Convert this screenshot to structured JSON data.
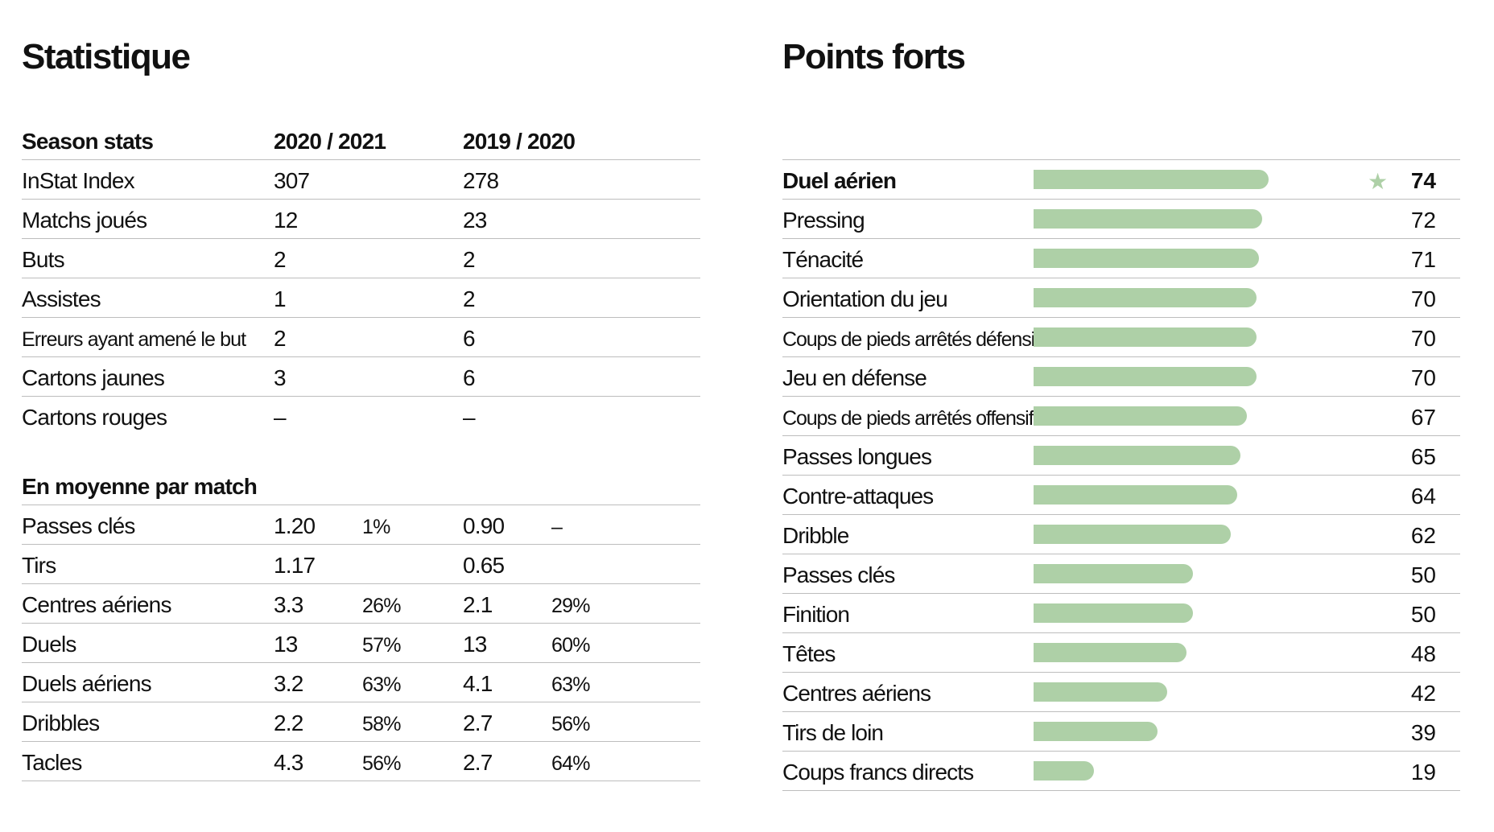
{
  "titles": {
    "left": "Statistique",
    "right": "Points forts"
  },
  "season": {
    "header": {
      "label": "Season stats",
      "col1": "2020 / 2021",
      "col2": "2019 / 2020"
    },
    "rows": [
      {
        "label": "InStat Index",
        "v1": "307",
        "v2": "278"
      },
      {
        "label": "Matchs joués",
        "v1": "12",
        "v2": "23"
      },
      {
        "label": "Buts",
        "v1": "2",
        "v2": "2"
      },
      {
        "label": "Assistes",
        "v1": "1",
        "v2": "2"
      },
      {
        "label": "Erreurs ayant amené le but",
        "v1": "2",
        "v2": "6"
      },
      {
        "label": "Cartons jaunes",
        "v1": "3",
        "v2": "6"
      },
      {
        "label": "Cartons rouges",
        "v1": "–",
        "v2": "–"
      }
    ]
  },
  "average": {
    "header": "En moyenne par match",
    "rows": [
      {
        "label": "Passes clés",
        "v1": "1.20",
        "p1": "1%",
        "v2": "0.90",
        "p2": "–"
      },
      {
        "label": "Tirs",
        "v1": "1.17",
        "p1": "",
        "v2": "0.65",
        "p2": ""
      },
      {
        "label": "Centres aériens",
        "v1": "3.3",
        "p1": "26%",
        "v2": "2.1",
        "p2": "29%"
      },
      {
        "label": "Duels",
        "v1": "13",
        "p1": "57%",
        "v2": "13",
        "p2": "60%"
      },
      {
        "label": "Duels aériens",
        "v1": "3.2",
        "p1": "63%",
        "v2": "4.1",
        "p2": "63%"
      },
      {
        "label": "Dribbles",
        "v1": "2.2",
        "p1": "58%",
        "v2": "2.7",
        "p2": "56%"
      },
      {
        "label": "Tacles",
        "v1": "4.3",
        "p1": "56%",
        "v2": "2.7",
        "p2": "64%"
      }
    ]
  },
  "strengths": {
    "bar_color": "#aed0a7",
    "scale_max": 100,
    "items": [
      {
        "label": "Duel aérien",
        "value": 74,
        "top": true,
        "icon": "star-icon"
      },
      {
        "label": "Pressing",
        "value": 72
      },
      {
        "label": "Ténacité",
        "value": 71
      },
      {
        "label": "Orientation du jeu",
        "value": 70
      },
      {
        "label": "Coups de pieds arrêtés défensifs",
        "value": 70,
        "small": true
      },
      {
        "label": "Jeu en défense",
        "value": 70
      },
      {
        "label": "Coups de pieds arrêtés offensifs",
        "value": 67,
        "small": true
      },
      {
        "label": "Passes longues",
        "value": 65
      },
      {
        "label": "Contre-attaques",
        "value": 64
      },
      {
        "label": "Dribble",
        "value": 62
      },
      {
        "label": "Passes clés",
        "value": 50
      },
      {
        "label": "Finition",
        "value": 50
      },
      {
        "label": "Têtes",
        "value": 48
      },
      {
        "label": "Centres aériens",
        "value": 42
      },
      {
        "label": "Tirs de loin",
        "value": 39
      },
      {
        "label": "Coups francs directs",
        "value": 19
      }
    ]
  }
}
